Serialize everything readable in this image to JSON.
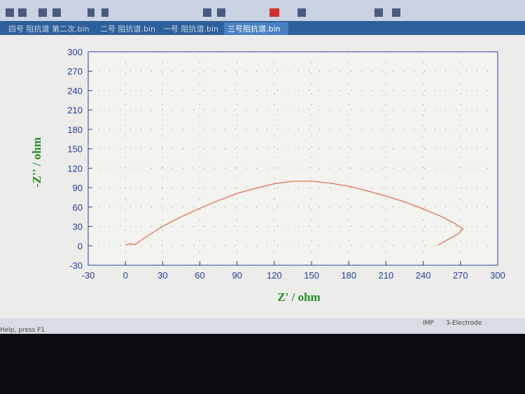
{
  "tabs": [
    "四号 阻抗谱 第二次.bin",
    "二号 阻抗谱.bin",
    "一号 阻抗谱.bin",
    "三号阻抗谱.bin"
  ],
  "status": {
    "help": "Help, press F1",
    "mode": "IMP",
    "electrode": "3-Electrode"
  },
  "chart_data": {
    "type": "line",
    "xlabel": "Z' / ohm",
    "ylabel": "-Z'' / ohm",
    "x": [
      0,
      3,
      8,
      12,
      20,
      30,
      45,
      60,
      75,
      90,
      105,
      120,
      135,
      150,
      165,
      180,
      195,
      210,
      225,
      240,
      255,
      265,
      272,
      268,
      260,
      252
    ],
    "series": [
      {
        "color": "#e0705c",
        "values": [
          1,
          3,
          2,
          8,
          18,
          30,
          45,
          58,
          70,
          81,
          89,
          96,
          100,
          100,
          97,
          92,
          85,
          77,
          68,
          57,
          45,
          35,
          26,
          18,
          10,
          1
        ]
      }
    ],
    "xlim": [
      -30,
      300
    ],
    "ylim": [
      -30,
      300
    ],
    "xticks": [
      -30,
      0,
      30,
      60,
      90,
      120,
      150,
      180,
      210,
      240,
      270,
      300
    ],
    "yticks": [
      -30,
      0,
      30,
      60,
      90,
      120,
      150,
      180,
      210,
      240,
      270,
      300
    ],
    "grid": true
  }
}
